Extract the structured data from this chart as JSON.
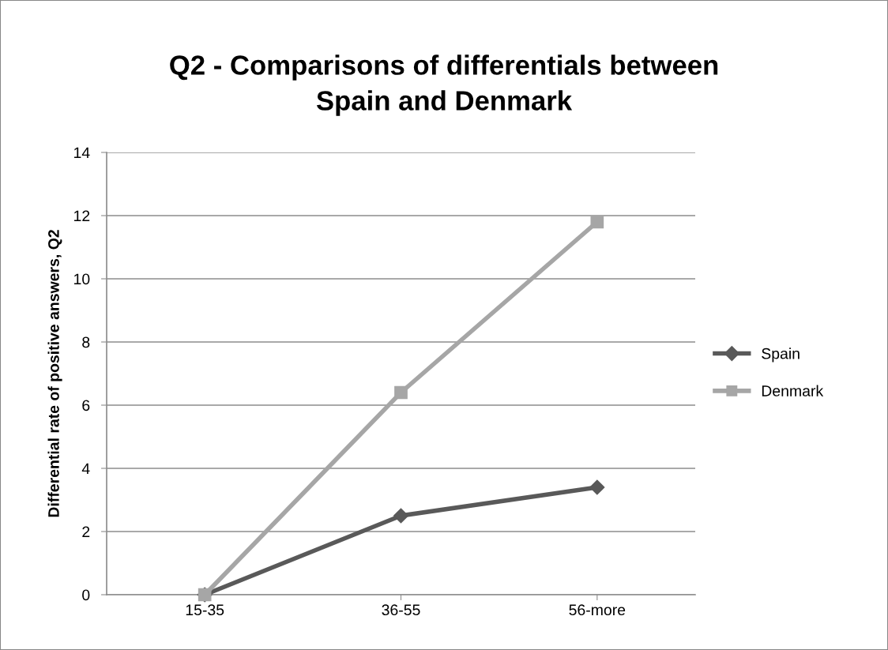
{
  "chart_data": {
    "type": "line",
    "title": "Q2 - Comparisons of differentials between\nSpain and Denmark",
    "ylabel": "Differential rate of positive answers, Q2",
    "categories": [
      "15-35",
      "36-55",
      "56-more"
    ],
    "series": [
      {
        "name": "Spain",
        "color": "#595959",
        "marker": "diamond",
        "values": [
          0,
          2.5,
          3.4
        ]
      },
      {
        "name": "Denmark",
        "color": "#a6a6a6",
        "marker": "square",
        "values": [
          0,
          6.4,
          11.8
        ]
      }
    ],
    "ylim": [
      0,
      14
    ],
    "yticks": [
      0,
      2,
      4,
      6,
      8,
      10,
      12,
      14
    ],
    "grid": "y",
    "legend": "right",
    "line_style": "solid"
  }
}
